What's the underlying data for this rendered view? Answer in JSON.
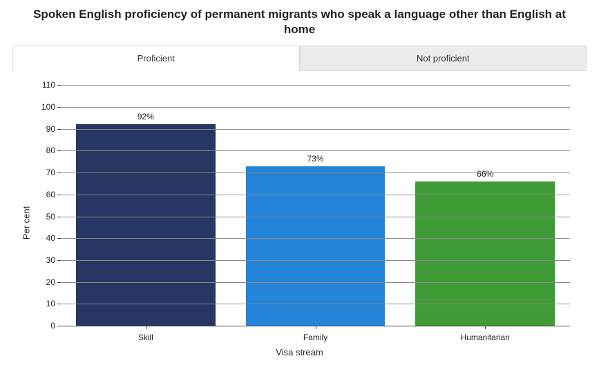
{
  "title": "Spoken English proficiency of permanent migrants who speak a language other than English at home",
  "title_fontsize": 17,
  "tabs": [
    {
      "label": "Proficient",
      "active": true
    },
    {
      "label": "Not proficient",
      "active": false
    }
  ],
  "chart": {
    "type": "bar",
    "categories": [
      "Skill",
      "Family",
      "Humanitarian"
    ],
    "values": [
      92,
      73,
      66
    ],
    "value_labels": [
      "92%",
      "73%",
      "66%"
    ],
    "bar_colors": [
      "#283663",
      "#2484d7",
      "#3f9b36"
    ],
    "ylabel": "Per cent",
    "xlabel": "Visa stream",
    "ylim": [
      0,
      110
    ],
    "ytick_step": 10,
    "yticks": [
      0,
      10,
      20,
      30,
      40,
      50,
      60,
      70,
      80,
      90,
      100,
      110
    ],
    "grid_color": "#8a8a8a",
    "axis_color": "#444444",
    "background_color": "#ffffff",
    "tick_fontsize": 12,
    "label_fontsize": 13,
    "value_label_fontsize": 12,
    "bar_width": 0.82
  },
  "tab_active_bg": "#ffffff",
  "tab_inactive_bg": "#ececec",
  "tab_border": "#d8d8d8"
}
